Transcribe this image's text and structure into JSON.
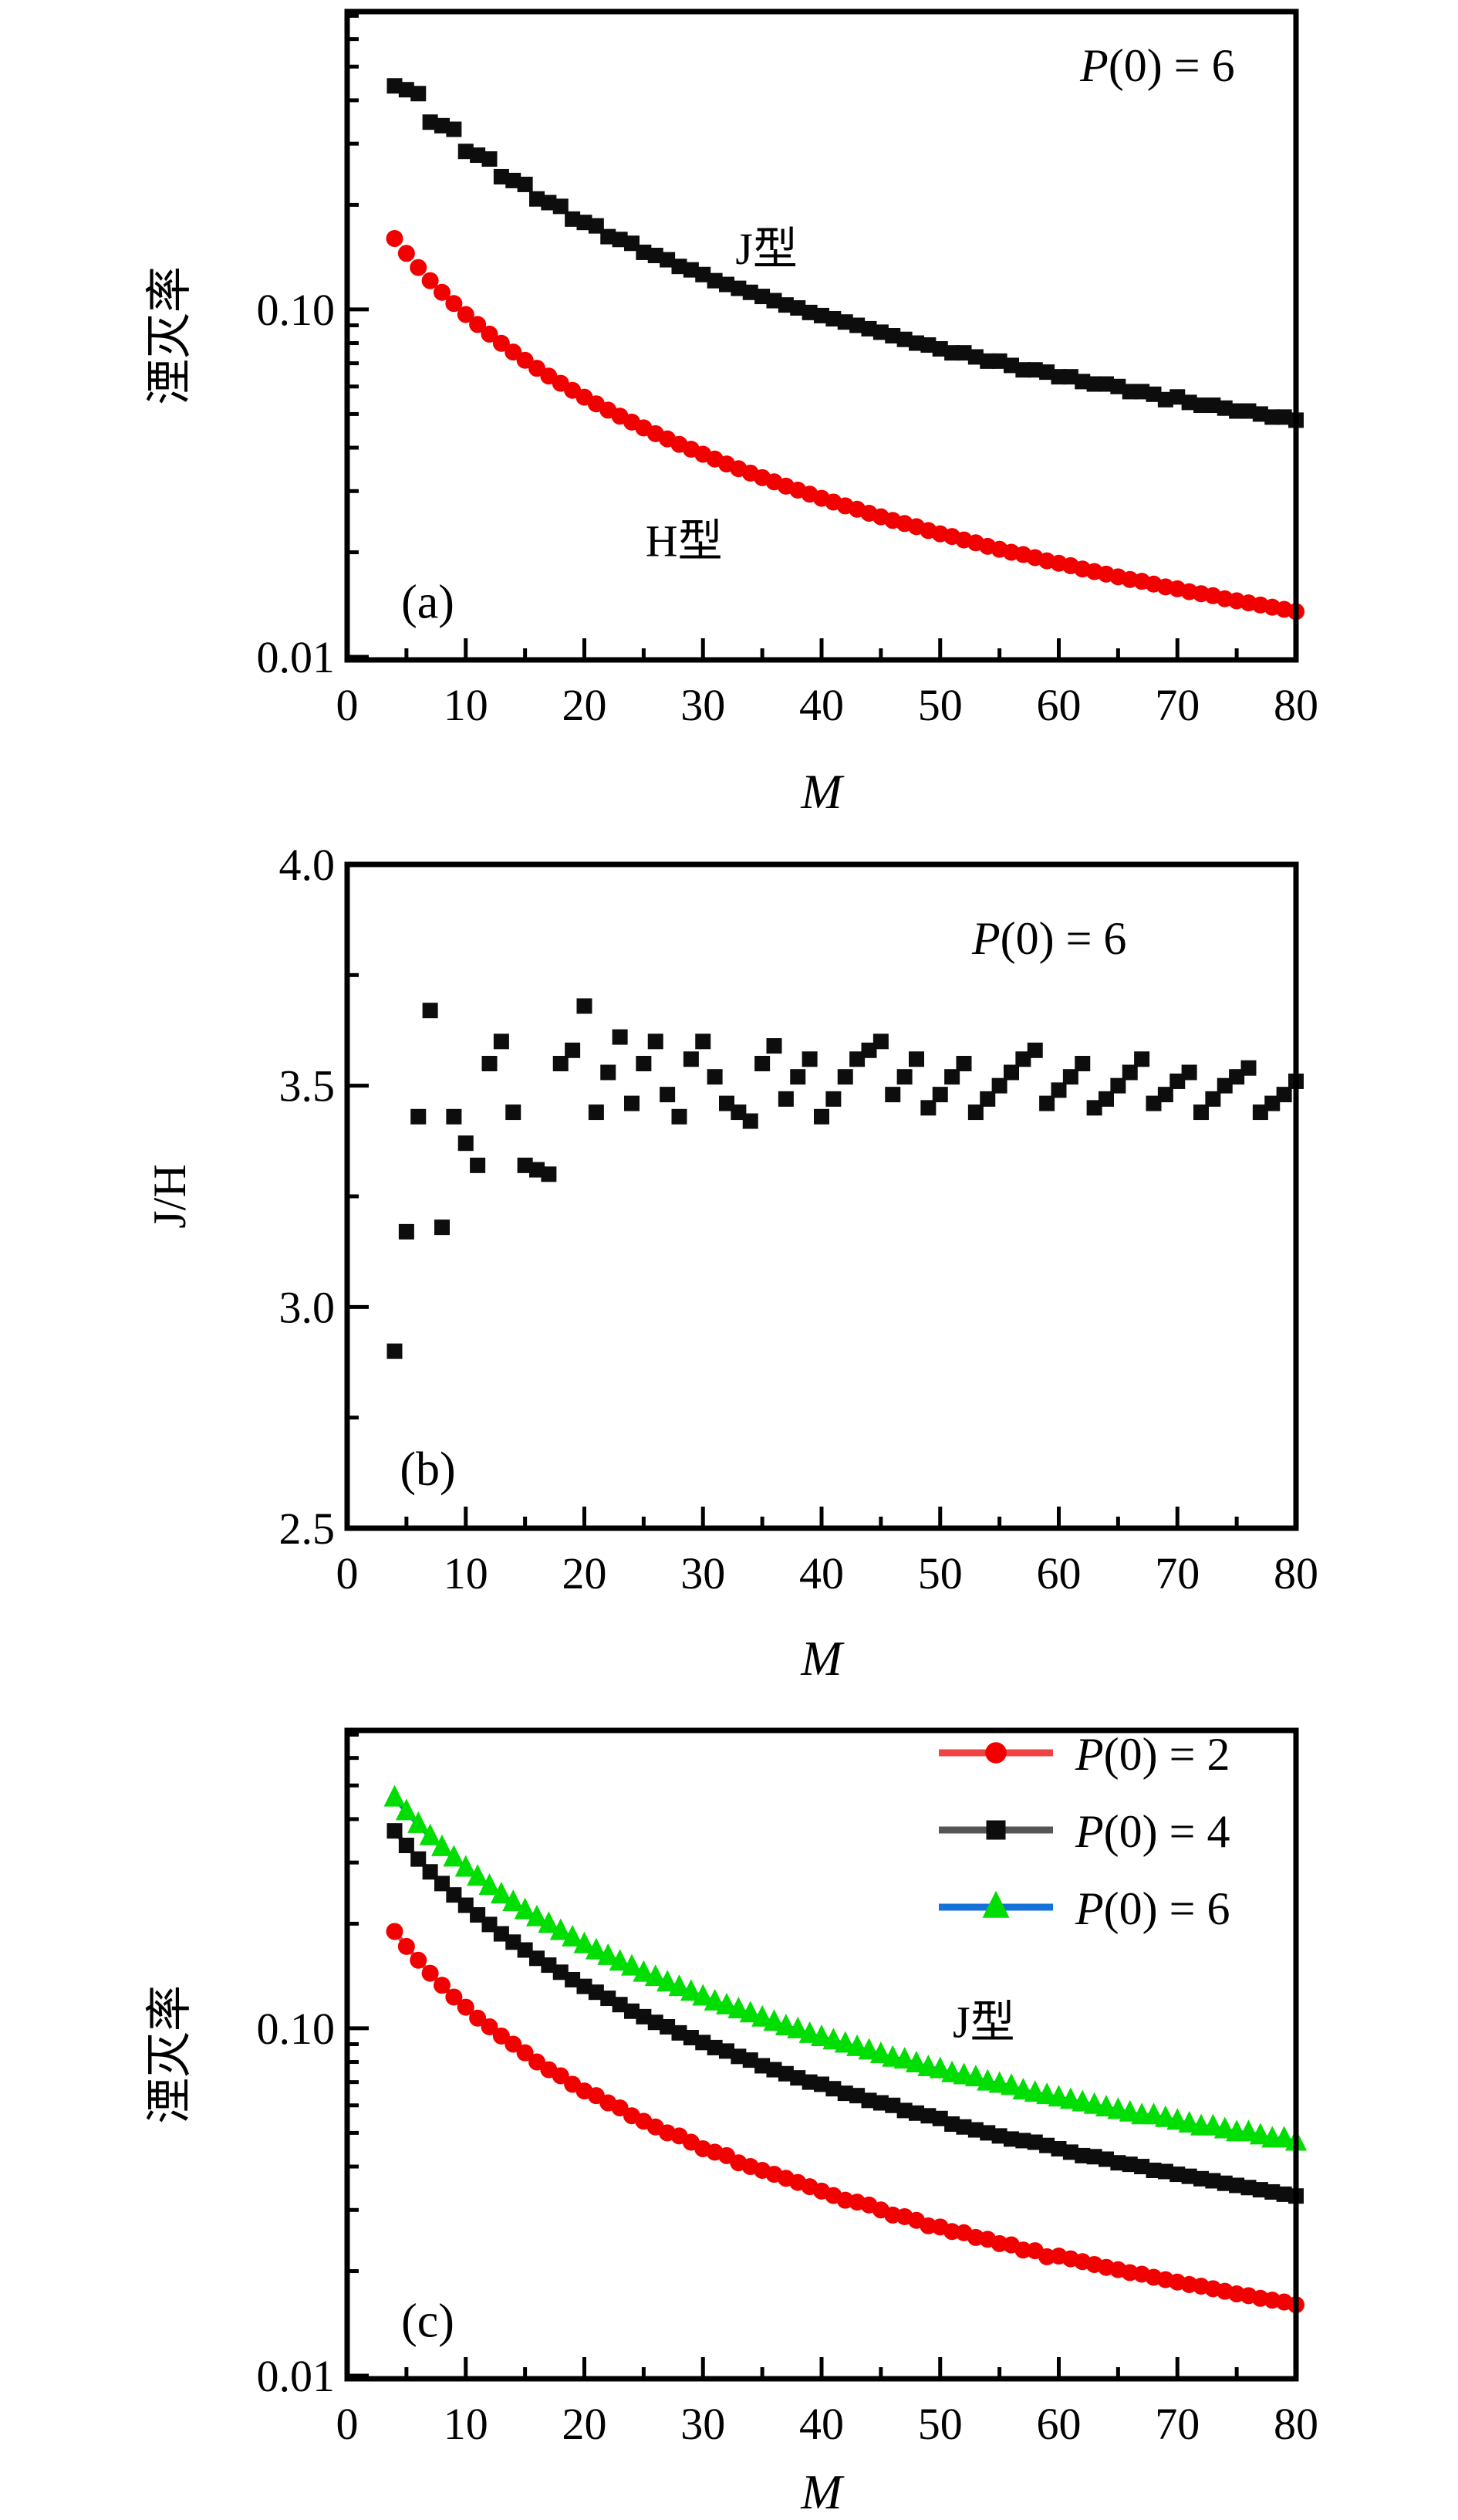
{
  "figure": {
    "background": "#ffffff",
    "xlabel": "M",
    "panel_letters": [
      "(a)",
      "(b)",
      "(c)"
    ]
  },
  "chart_data": [
    {
      "id": "a",
      "type": "scatter",
      "panel_label": "(a)",
      "xlabel": "M",
      "ylabel": "湮灭率",
      "ylabel_italic": false,
      "yscale": "log",
      "xlim": [
        0,
        80
      ],
      "ylim": [
        0.0098,
        0.72
      ],
      "x_start": 4,
      "x_step": 1,
      "grid": false,
      "xticks_major": [
        {
          "v": 0,
          "label": "0"
        },
        {
          "v": 10,
          "label": "10"
        },
        {
          "v": 20,
          "label": "20"
        },
        {
          "v": 30,
          "label": "30"
        },
        {
          "v": 40,
          "label": "40"
        },
        {
          "v": 50,
          "label": "50"
        },
        {
          "v": 60,
          "label": "60"
        },
        {
          "v": 70,
          "label": "70"
        },
        {
          "v": 80,
          "label": "80"
        }
      ],
      "xticks_minor": [
        5,
        15,
        25,
        35,
        45,
        55,
        65,
        75
      ],
      "yticks_major": [
        {
          "v": 0.1,
          "label": "0.10"
        },
        {
          "v": 0.01,
          "label": "0.01"
        }
      ],
      "yticks_minor": [
        0.02,
        0.03,
        0.04,
        0.05,
        0.06,
        0.07,
        0.08,
        0.09,
        0.2,
        0.3,
        0.4,
        0.5,
        0.6,
        0.7
      ],
      "annotations": [
        {
          "text": "P(0) = 6",
          "math": true
        },
        {
          "text": "J型",
          "math": false
        },
        {
          "text": "H型",
          "math": false
        },
        {
          "text": "(a)",
          "math": false
        }
      ],
      "series": [
        {
          "key": "j-type-squares",
          "name": "J型",
          "marker": "square",
          "color": "#0d0d0d",
          "line_color": null,
          "values": [
            0.44,
            0.429,
            0.418,
            0.346,
            0.338,
            0.33,
            0.285,
            0.278,
            0.271,
            0.241,
            0.235,
            0.229,
            0.208,
            0.203,
            0.198,
            0.182,
            0.178,
            0.174,
            0.162,
            0.159,
            0.155,
            0.146,
            0.143,
            0.139,
            0.133,
            0.13,
            0.126,
            0.121,
            0.118,
            0.115,
            0.112,
            0.109,
            0.106,
            0.103,
            0.101,
            0.098,
            0.096,
            0.094,
            0.092,
            0.09,
            0.088,
            0.086,
            0.084,
            0.082,
            0.08,
            0.079,
            0.077,
            0.075,
            0.075,
            0.073,
            0.071,
            0.071,
            0.069,
            0.067,
            0.067,
            0.066,
            0.064,
            0.064,
            0.062,
            0.061,
            0.061,
            0.06,
            0.058,
            0.058,
            0.057,
            0.055,
            0.056,
            0.054,
            0.053,
            0.053,
            0.052,
            0.051,
            0.051,
            0.05,
            0.049,
            0.049,
            0.048
          ]
        },
        {
          "key": "h-type-circles",
          "name": "H型",
          "marker": "circle",
          "color": "#f20000",
          "line_color": null,
          "values": [
            0.16,
            0.145,
            0.132,
            0.121,
            0.112,
            0.104,
            0.0967,
            0.0905,
            0.0849,
            0.0799,
            0.0754,
            0.0714,
            0.0677,
            0.0643,
            0.0613,
            0.0585,
            0.0559,
            0.0535,
            0.0513,
            0.0493,
            0.0474,
            0.0456,
            0.0439,
            0.0424,
            0.0409,
            0.0396,
            0.0383,
            0.0371,
            0.0359,
            0.0348,
            0.0338,
            0.0328,
            0.0319,
            0.031,
            0.0302,
            0.0294,
            0.0286,
            0.0279,
            0.0272,
            0.0266,
            0.0259,
            0.0253,
            0.0247,
            0.0242,
            0.0237,
            0.0231,
            0.0226,
            0.0222,
            0.0217,
            0.0213,
            0.0208,
            0.0204,
            0.02,
            0.0197,
            0.0193,
            0.0189,
            0.0186,
            0.0183,
            0.0179,
            0.0176,
            0.0173,
            0.017,
            0.0167,
            0.0165,
            0.0162,
            0.0159,
            0.0157,
            0.0154,
            0.0152,
            0.015,
            0.0147,
            0.0145,
            0.0143,
            0.0141,
            0.0139,
            0.0137,
            0.0135
          ]
        }
      ]
    },
    {
      "id": "b",
      "type": "scatter",
      "panel_label": "(b)",
      "xlabel": "M",
      "ylabel": "J/H",
      "ylabel_italic": false,
      "yscale": "linear",
      "xlim": [
        0,
        80
      ],
      "ylim": [
        2.5,
        4.0
      ],
      "x_start": 4,
      "x_step": 1,
      "grid": false,
      "xticks_major": [
        {
          "v": 0,
          "label": "0"
        },
        {
          "v": 10,
          "label": "10"
        },
        {
          "v": 20,
          "label": "20"
        },
        {
          "v": 30,
          "label": "30"
        },
        {
          "v": 40,
          "label": "40"
        },
        {
          "v": 50,
          "label": "50"
        },
        {
          "v": 60,
          "label": "60"
        },
        {
          "v": 70,
          "label": "70"
        },
        {
          "v": 80,
          "label": "80"
        }
      ],
      "xticks_minor": [
        5,
        15,
        25,
        35,
        45,
        55,
        65,
        75
      ],
      "yticks_major": [
        {
          "v": 4.0,
          "label": "4.0"
        },
        {
          "v": 3.5,
          "label": "3.5"
        },
        {
          "v": 3.0,
          "label": "3.0"
        },
        {
          "v": 2.5,
          "label": "2.5"
        }
      ],
      "yticks_minor": [
        3.75,
        3.25,
        2.75
      ],
      "annotations": [
        {
          "text": "P(0) = 6",
          "math": true
        },
        {
          "text": "(b)",
          "math": false
        }
      ],
      "series": [
        {
          "key": "jh-ratio",
          "name": "J/H",
          "marker": "square",
          "color": "#0d0d0d",
          "line_color": null,
          "values": [
            2.9,
            3.17,
            3.43,
            3.67,
            3.18,
            3.43,
            3.37,
            3.32,
            3.55,
            3.6,
            3.44,
            3.32,
            3.31,
            3.3,
            3.55,
            3.58,
            3.68,
            3.44,
            3.53,
            3.61,
            3.46,
            3.55,
            3.6,
            3.48,
            3.43,
            3.56,
            3.6,
            3.52,
            3.46,
            3.44,
            3.42,
            3.55,
            3.59,
            3.47,
            3.52,
            3.56,
            3.43,
            3.47,
            3.52,
            3.56,
            3.58,
            3.6,
            3.48,
            3.52,
            3.56,
            3.45,
            3.48,
            3.52,
            3.55,
            3.44,
            3.47,
            3.5,
            3.53,
            3.56,
            3.58,
            3.46,
            3.49,
            3.52,
            3.55,
            3.45,
            3.47,
            3.5,
            3.53,
            3.56,
            3.46,
            3.48,
            3.51,
            3.53,
            3.44,
            3.47,
            3.5,
            3.52,
            3.54,
            3.44,
            3.46,
            3.48,
            3.51
          ]
        }
      ]
    },
    {
      "id": "c",
      "type": "scatter",
      "panel_label": "(c)",
      "xlabel": "M",
      "ylabel": "湮灭率",
      "ylabel_italic": false,
      "yscale": "log",
      "xlim": [
        0,
        80
      ],
      "ylim": [
        0.0098,
        0.72
      ],
      "x_start": 4,
      "x_step": 1,
      "grid": false,
      "xticks_major": [
        {
          "v": 0,
          "label": "0"
        },
        {
          "v": 10,
          "label": "10"
        },
        {
          "v": 20,
          "label": "20"
        },
        {
          "v": 30,
          "label": "30"
        },
        {
          "v": 40,
          "label": "40"
        },
        {
          "v": 50,
          "label": "50"
        },
        {
          "v": 60,
          "label": "60"
        },
        {
          "v": 70,
          "label": "70"
        },
        {
          "v": 80,
          "label": "80"
        }
      ],
      "xticks_minor": [
        5,
        15,
        25,
        35,
        45,
        55,
        65,
        75
      ],
      "yticks_major": [
        {
          "v": 0.1,
          "label": "0.10"
        },
        {
          "v": 0.01,
          "label": "0.01"
        }
      ],
      "yticks_minor": [
        0.02,
        0.03,
        0.04,
        0.05,
        0.06,
        0.07,
        0.08,
        0.09,
        0.2,
        0.3,
        0.4,
        0.5,
        0.6,
        0.7
      ],
      "annotations": [
        {
          "text": "J型",
          "math": false
        },
        {
          "text": "(c)",
          "math": false
        }
      ],
      "legend": {
        "entries": [
          {
            "label": "P(0) = 2",
            "marker": "circle",
            "marker_color": "#f20000",
            "line_color": "#ef4444"
          },
          {
            "label": "P(0) = 4",
            "marker": "square",
            "marker_color": "#0d0d0d",
            "line_color": "#555555"
          },
          {
            "label": "P(0) = 6",
            "marker": "triangle",
            "marker_color": "#00dd00",
            "line_color": "#1472d8"
          }
        ]
      },
      "series": [
        {
          "key": "p0-2",
          "name": "P(0) = 2",
          "marker": "circle",
          "color": "#f20000",
          "line_color": "#ef4444",
          "values": [
            0.19,
            0.172,
            0.157,
            0.144,
            0.133,
            0.123,
            0.115,
            0.107,
            0.101,
            0.095,
            0.09,
            0.085,
            0.08,
            0.076,
            0.073,
            0.069,
            0.066,
            0.064,
            0.061,
            0.059,
            0.056,
            0.054,
            0.052,
            0.05,
            0.049,
            0.047,
            0.045,
            0.044,
            0.043,
            0.041,
            0.04,
            0.039,
            0.038,
            0.037,
            0.036,
            0.035,
            0.034,
            0.033,
            0.032,
            0.0316,
            0.031,
            0.03,
            0.029,
            0.0287,
            0.028,
            0.027,
            0.0268,
            0.026,
            0.0258,
            0.025,
            0.0247,
            0.024,
            0.0238,
            0.023,
            0.0229,
            0.022,
            0.0221,
            0.0217,
            0.0213,
            0.0209,
            0.0205,
            0.0202,
            0.0198,
            0.0196,
            0.0192,
            0.0189,
            0.0186,
            0.0183,
            0.0181,
            0.0178,
            0.0175,
            0.0172,
            0.017,
            0.0167,
            0.0165,
            0.0163,
            0.016
          ]
        },
        {
          "key": "p0-4",
          "name": "P(0) = 4",
          "marker": "square",
          "color": "#0d0d0d",
          "line_color": "#555555",
          "values": [
            0.37,
            0.336,
            0.307,
            0.282,
            0.261,
            0.242,
            0.226,
            0.212,
            0.199,
            0.187,
            0.177,
            0.168,
            0.159,
            0.152,
            0.145,
            0.138,
            0.132,
            0.127,
            0.122,
            0.117,
            0.112,
            0.108,
            0.104,
            0.101,
            0.097,
            0.094,
            0.091,
            0.088,
            0.086,
            0.083,
            0.081,
            0.078,
            0.076,
            0.074,
            0.072,
            0.07,
            0.069,
            0.067,
            0.065,
            0.064,
            0.062,
            0.061,
            0.06,
            0.058,
            0.057,
            0.056,
            0.055,
            0.053,
            0.052,
            0.051,
            0.05,
            0.049,
            0.048,
            0.0475,
            0.047,
            0.046,
            0.045,
            0.044,
            0.043,
            0.0427,
            0.042,
            0.041,
            0.0406,
            0.04,
            0.039,
            0.0387,
            0.038,
            0.0375,
            0.0369,
            0.0364,
            0.0358,
            0.0353,
            0.0348,
            0.0343,
            0.0338,
            0.0333,
            0.0329
          ]
        },
        {
          "key": "p0-6",
          "name": "P(0) = 6",
          "marker": "triangle",
          "color": "#00dd00",
          "line_color": "#1472d8",
          "values": [
            0.46,
            0.42,
            0.386,
            0.356,
            0.331,
            0.309,
            0.289,
            0.272,
            0.256,
            0.242,
            0.23,
            0.218,
            0.208,
            0.199,
            0.19,
            0.182,
            0.174,
            0.167,
            0.161,
            0.155,
            0.15,
            0.144,
            0.14,
            0.135,
            0.131,
            0.127,
            0.123,
            0.119,
            0.116,
            0.113,
            0.11,
            0.107,
            0.104,
            0.101,
            0.099,
            0.096,
            0.094,
            0.092,
            0.09,
            0.088,
            0.086,
            0.084,
            0.082,
            0.081,
            0.079,
            0.077,
            0.076,
            0.074,
            0.073,
            0.072,
            0.07,
            0.069,
            0.068,
            0.066,
            0.065,
            0.064,
            0.063,
            0.062,
            0.061,
            0.06,
            0.059,
            0.058,
            0.057,
            0.056,
            0.056,
            0.055,
            0.054,
            0.053,
            0.052,
            0.052,
            0.051,
            0.05,
            0.05,
            0.049,
            0.048,
            0.048,
            0.047
          ]
        }
      ]
    }
  ]
}
